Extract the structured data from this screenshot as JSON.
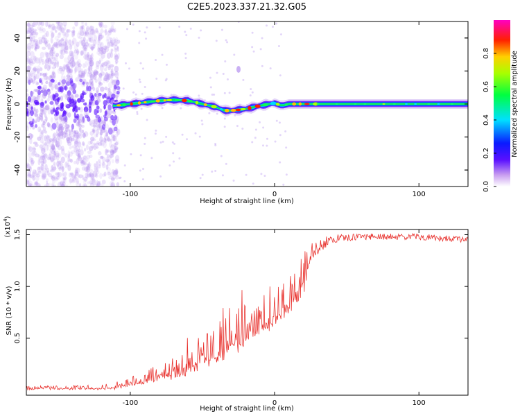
{
  "title": "C2E5.2023.337.21.32.G05",
  "chart_data": [
    {
      "type": "heatmap",
      "xlabel": "Height of straight line (km)",
      "ylabel": "Frequency (Hz)",
      "xlim": [
        -172,
        134
      ],
      "ylim": [
        -50,
        50
      ],
      "x_ticks": [
        -100,
        0,
        100
      ],
      "y_ticks": [
        -40,
        -20,
        0,
        20,
        40
      ],
      "colorbar": {
        "label": "Normalized spectral amplitude",
        "range": [
          0,
          1
        ],
        "ticks": [
          "0.0",
          "0.2",
          "0.4",
          "0.6",
          "0.8"
        ],
        "colormap": "rainbow (white-violet-blue-cyan-green-yellow-red-magenta)"
      },
      "ridge": {
        "x": [
          -110,
          -100,
          -90,
          -80,
          -70,
          -60,
          -50,
          -40,
          -35,
          -30,
          -20,
          -10,
          0,
          5,
          10,
          20,
          40,
          60,
          80,
          100,
          120,
          134
        ],
        "y": [
          -1,
          0,
          1,
          2,
          2.5,
          2,
          0,
          -2,
          -4,
          -4,
          -3,
          -1,
          0.5,
          -1,
          0,
          0,
          0,
          0,
          0,
          0,
          0,
          0
        ]
      },
      "noise_region_x": [
        -172,
        -108
      ]
    },
    {
      "type": "line",
      "xlabel": "Height of straight line (km)",
      "ylabel": "SNR (10 * v/v)",
      "y_multiplier_label": "(x10",
      "y_multiplier_exp": "4",
      "y_multiplier_close": ")",
      "xlim": [
        -172,
        134
      ],
      "ylim": [
        -0.05,
        1.55
      ],
      "x_ticks": [
        -100,
        0,
        100
      ],
      "y_ticks": [
        0.5,
        1.0,
        1.5
      ],
      "series": [
        {
          "color": "#e8302c",
          "envelope": {
            "x": [
              -172,
              -140,
              -110,
              -100,
              -90,
              -80,
              -70,
              -60,
              -50,
              -40,
              -30,
              -20,
              -10,
              0,
              10,
              20,
              25,
              30,
              40,
              60,
              100,
              134
            ],
            "base": [
              0.0,
              0.0,
              0.0,
              0.03,
              0.05,
              0.08,
              0.1,
              0.12,
              0.18,
              0.22,
              0.3,
              0.4,
              0.5,
              0.6,
              0.7,
              0.9,
              1.2,
              1.38,
              1.46,
              1.48,
              1.48,
              1.45
            ],
            "amp": [
              0.06,
              0.06,
              0.08,
              0.14,
              0.18,
              0.25,
              0.3,
              0.4,
              0.55,
              0.6,
              0.75,
              0.6,
              0.5,
              0.55,
              0.55,
              0.5,
              0.25,
              0.08,
              0.04,
              0.03,
              0.03,
              0.03
            ]
          }
        }
      ]
    }
  ]
}
